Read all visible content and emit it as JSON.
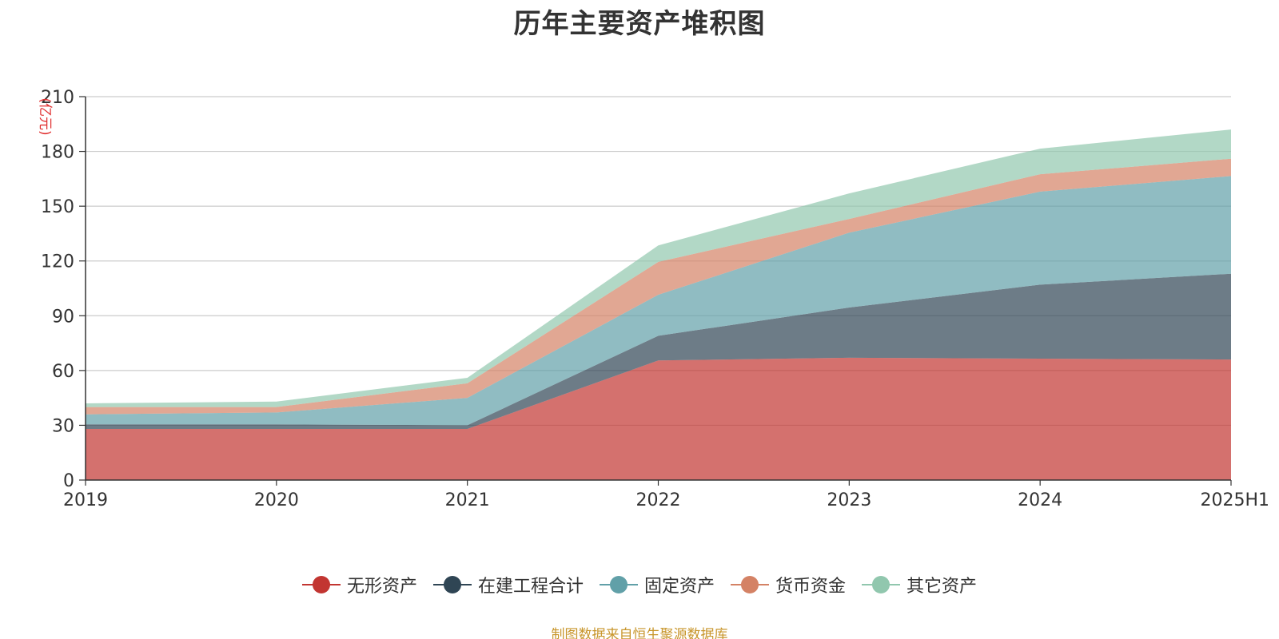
{
  "chart_data": {
    "type": "area",
    "stacked": true,
    "title": "历年主要资产堆积图",
    "ylabel": "(亿元)",
    "xlabel": "",
    "categories": [
      "2019",
      "2020",
      "2021",
      "2022",
      "2023",
      "2024",
      "2025H1"
    ],
    "yticks": [
      "0",
      "30",
      "60",
      "90",
      "120",
      "150",
      "180",
      "210"
    ],
    "ylim": [
      0,
      210
    ],
    "grid": true,
    "legend_position": "bottom",
    "series": [
      {
        "name": "无形资产",
        "color": "#c23531",
        "values": [
          28,
          28,
          28,
          65.5,
          67,
          66.5,
          66
        ]
      },
      {
        "name": "在建工程合计",
        "color": "#2f4554",
        "values": [
          2.5,
          2.5,
          2,
          13.5,
          27.5,
          40.5,
          47
        ]
      },
      {
        "name": "固定资产",
        "color": "#61a0a8",
        "values": [
          5.5,
          6.5,
          15,
          22.5,
          41,
          51,
          53.5
        ]
      },
      {
        "name": "货币资金",
        "color": "#d48265",
        "values": [
          4,
          3,
          8,
          18,
          7.5,
          9.5,
          9.5
        ]
      },
      {
        "name": "其它资产",
        "color": "#91c7ae",
        "values": [
          2,
          3,
          3,
          9,
          14,
          14,
          16
        ]
      }
    ],
    "source": "制图数据来自恒生聚源数据库"
  }
}
